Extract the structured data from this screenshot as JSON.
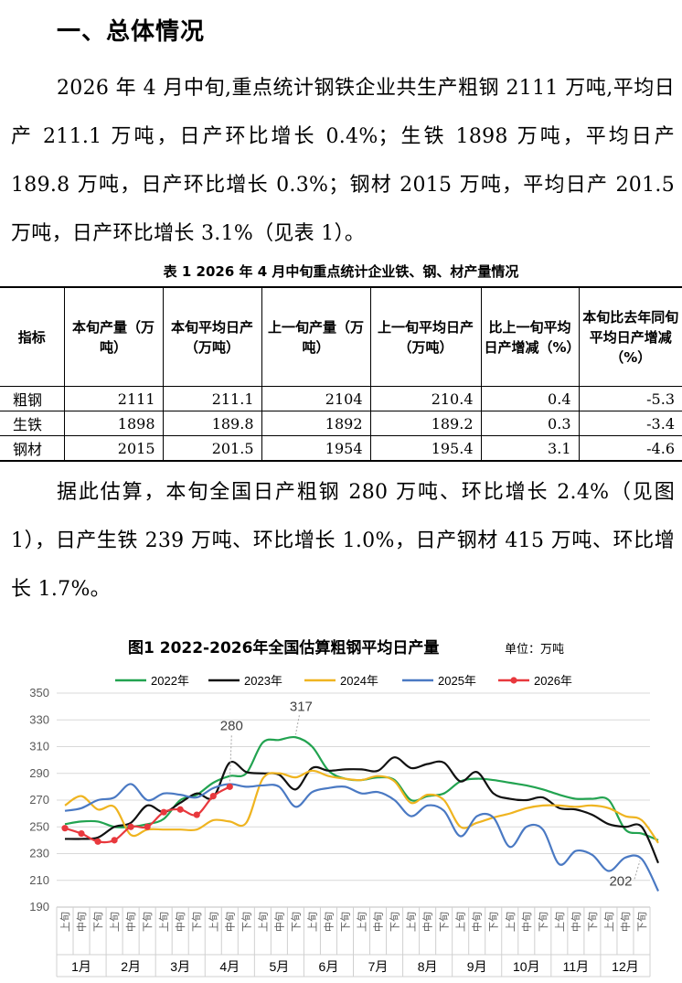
{
  "section_heading": "一、总体情况",
  "paragraph_1": "2026 年 4 月中旬,重点统计钢铁企业共生产粗钢 2111 万吨,平均日产 211.1 万吨，日产环比增长 0.4%；生铁 1898 万吨，平均日产 189.8 万吨，日产环比增长 0.3%；钢材 2015 万吨，平均日产 201.5 万吨，日产环比增长 3.1%（见表 1）。",
  "table_1": {
    "caption": "表 1   2026 年 4 月中旬重点统计企业铁、钢、材产量情况",
    "headers": [
      "指标",
      "本旬产量（万吨）",
      "本旬平均日产（万吨）",
      "上一旬产量（万吨）",
      "上一旬平均日产（万吨）",
      "比上一旬平均日产增减（%）",
      "本旬比去年同旬平均日产增减（%）"
    ],
    "rows": [
      [
        "粗钢",
        "2111",
        "211.1",
        "2104",
        "210.4",
        "0.4",
        "-5.3"
      ],
      [
        "生铁",
        "1898",
        "189.8",
        "1892",
        "189.2",
        "0.3",
        "-3.4"
      ],
      [
        "钢材",
        "2015",
        "201.5",
        "1954",
        "195.4",
        "3.1",
        "-4.6"
      ]
    ]
  },
  "paragraph_2": "据此估算，本旬全国日产粗钢 280 万吨、环比增长 2.4%（见图 1），日产生铁 239 万吨、环比增长 1.0%，日产钢材 415 万吨、环比增长 1.7%。",
  "chart_data": {
    "type": "line",
    "title": "图1  2022-2026年全国估算粗钢平均日产量",
    "unit": "单位：万吨",
    "ylim": [
      190,
      350
    ],
    "yticks": [
      190,
      210,
      230,
      250,
      270,
      290,
      310,
      330,
      350
    ],
    "grid": true,
    "legend_position": "top",
    "x_tick_labels": [
      "上旬",
      "中旬",
      "下旬"
    ],
    "months": [
      "1月",
      "2月",
      "3月",
      "4月",
      "5月",
      "6月",
      "7月",
      "8月",
      "9月",
      "10月",
      "11月",
      "12月"
    ],
    "annotations": [
      "280",
      "317",
      "202"
    ],
    "series": [
      {
        "name": "2022年",
        "color": "#22a350",
        "markers": false,
        "values": [
          252,
          254,
          254,
          250,
          250,
          252,
          256,
          270,
          274,
          283,
          288,
          290,
          313,
          315,
          317,
          310,
          292,
          286,
          285,
          287,
          285,
          270,
          273,
          275,
          284,
          286,
          285,
          283,
          281,
          278,
          274,
          271,
          271,
          270,
          248,
          245,
          240
        ]
      },
      {
        "name": "2023年",
        "color": "#111111",
        "markers": false,
        "values": [
          241,
          241,
          242,
          250,
          253,
          266,
          261,
          268,
          275,
          272,
          298,
          291,
          290,
          289,
          278,
          294,
          292,
          293,
          293,
          292,
          302,
          294,
          297,
          298,
          284,
          291,
          275,
          271,
          270,
          272,
          264,
          263,
          259,
          252,
          250,
          250,
          223
        ]
      },
      {
        "name": "2024年",
        "color": "#efb420",
        "markers": false,
        "values": [
          266,
          273,
          263,
          265,
          244,
          248,
          248,
          248,
          248,
          255,
          254,
          253,
          286,
          290,
          287,
          292,
          288,
          286,
          285,
          288,
          284,
          268,
          274,
          270,
          250,
          253,
          257,
          260,
          264,
          266,
          266,
          265,
          266,
          264,
          258,
          255,
          238
        ]
      },
      {
        "name": "2025年",
        "color": "#4a79c3",
        "markers": false,
        "values": [
          262,
          264,
          270,
          272,
          282,
          270,
          275,
          274,
          272,
          279,
          282,
          280,
          281,
          280,
          265,
          276,
          279,
          280,
          275,
          276,
          270,
          258,
          266,
          262,
          243,
          258,
          257,
          235,
          250,
          248,
          222,
          232,
          229,
          217,
          227,
          226,
          202
        ]
      },
      {
        "name": "2026年",
        "color": "#e8383d",
        "markers": true,
        "values": [
          249,
          245,
          239,
          240,
          250,
          250,
          261,
          263,
          259,
          273,
          280
        ]
      }
    ]
  }
}
